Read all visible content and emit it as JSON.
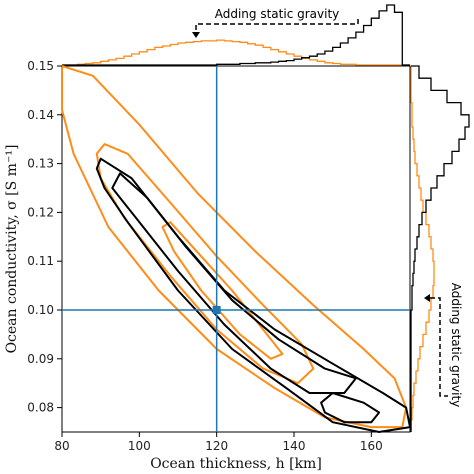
{
  "chart_data": {
    "type": "contour",
    "title": "",
    "xlabel": "Ocean thickness, h [km]",
    "ylabel": "Ocean conductivity, σ [S m⁻¹]",
    "xlim": [
      80,
      170
    ],
    "ylim": [
      0.075,
      0.15
    ],
    "xticks": [
      80,
      100,
      120,
      140,
      160
    ],
    "yticks": [
      0.08,
      0.09,
      0.1,
      0.11,
      0.12,
      0.13,
      0.14,
      0.15
    ],
    "true_value": {
      "h": 120,
      "sigma": 0.1
    },
    "colors": {
      "without_gravity": "#ff8c1a",
      "with_gravity": "#000000",
      "truth": "#1f77b4"
    },
    "annotations": {
      "top": "Adding static gravity",
      "right": "Adding static gravity"
    },
    "series": [
      {
        "color_key": "without_gravity",
        "contours": [
          [
            [
              80,
              0.15
            ],
            [
              88,
              0.148
            ],
            [
              100,
              0.138
            ],
            [
              115,
              0.124
            ],
            [
              130,
              0.112
            ],
            [
              145,
              0.101
            ],
            [
              158,
              0.092
            ],
            [
              166,
              0.086
            ],
            [
              169,
              0.08
            ],
            [
              168,
              0.076
            ],
            [
              160,
              0.076
            ],
            [
              148,
              0.078
            ],
            [
              135,
              0.084
            ],
            [
              120,
              0.092
            ],
            [
              105,
              0.104
            ],
            [
              92,
              0.117
            ],
            [
              83,
              0.132
            ],
            [
              80,
              0.141
            ]
          ],
          [
            [
              91,
              0.134
            ],
            [
              97,
              0.132
            ],
            [
              108,
              0.122
            ],
            [
              120,
              0.111
            ],
            [
              132,
              0.101
            ],
            [
              142,
              0.093
            ],
            [
              145,
              0.088
            ],
            [
              141,
              0.085
            ],
            [
              132,
              0.088
            ],
            [
              120,
              0.096
            ],
            [
              108,
              0.107
            ],
            [
              96,
              0.119
            ],
            [
              90,
              0.127
            ],
            [
              89,
              0.132
            ]
          ],
          [
            [
              108,
              0.118
            ],
            [
              116,
              0.111
            ],
            [
              124,
              0.104
            ],
            [
              132,
              0.096
            ],
            [
              137,
              0.091
            ],
            [
              134,
              0.09
            ],
            [
              126,
              0.095
            ],
            [
              116,
              0.104
            ],
            [
              109,
              0.112
            ],
            [
              106,
              0.117
            ]
          ]
        ]
      },
      {
        "color_key": "with_gravity",
        "contours": [
          [
            [
              90,
              0.131
            ],
            [
              98,
              0.127
            ],
            [
              110,
              0.115
            ],
            [
              122,
              0.104
            ],
            [
              135,
              0.096
            ],
            [
              150,
              0.089
            ],
            [
              163,
              0.083
            ],
            [
              169,
              0.08
            ],
            [
              170,
              0.076
            ],
            [
              162,
              0.075
            ],
            [
              150,
              0.077
            ],
            [
              138,
              0.084
            ],
            [
              124,
              0.092
            ],
            [
              110,
              0.104
            ],
            [
              97,
              0.118
            ],
            [
              91,
              0.125
            ],
            [
              89,
              0.129
            ]
          ],
          [
            [
              95,
              0.128
            ],
            [
              102,
              0.123
            ],
            [
              112,
              0.113
            ],
            [
              124,
              0.102
            ],
            [
              136,
              0.094
            ],
            [
              148,
              0.088
            ],
            [
              156,
              0.086
            ],
            [
              153,
              0.083
            ],
            [
              144,
              0.083
            ],
            [
              134,
              0.088
            ],
            [
              122,
              0.097
            ],
            [
              110,
              0.108
            ],
            [
              99,
              0.119
            ],
            [
              93,
              0.125
            ]
          ],
          [
            [
              150,
              0.083
            ],
            [
              158,
              0.081
            ],
            [
              162,
              0.079
            ],
            [
              160,
              0.077
            ],
            [
              153,
              0.077
            ],
            [
              148,
              0.079
            ],
            [
              147,
              0.081
            ]
          ]
        ]
      }
    ],
    "marginal_top": {
      "orange": [
        0,
        0,
        1,
        2,
        3,
        5,
        7,
        9,
        12,
        15,
        18,
        21,
        24,
        26,
        28,
        30,
        31,
        32,
        33,
        33,
        34,
        33,
        32,
        31,
        29,
        27,
        24,
        21,
        18,
        15,
        12,
        9,
        7,
        5,
        3,
        2,
        1,
        1,
        0,
        0,
        0,
        0,
        0,
        0,
        0
      ],
      "black": [
        0,
        0,
        0,
        0,
        0,
        0,
        0,
        0,
        0,
        0,
        0,
        0,
        0,
        0,
        0,
        0,
        0,
        0,
        0,
        0,
        1,
        1,
        1,
        2,
        2,
        3,
        3,
        4,
        5,
        6,
        8,
        10,
        12,
        15,
        19,
        24,
        30,
        37,
        45,
        54,
        64,
        74,
        82,
        72,
        0
      ]
    },
    "marginal_right": {
      "orange": [
        0,
        1,
        2,
        3,
        5,
        7,
        9,
        12,
        15,
        18,
        20,
        22,
        23,
        23,
        22,
        20,
        18,
        15,
        12,
        10,
        8,
        6,
        4,
        3,
        2,
        1,
        1,
        0,
        0,
        0
      ],
      "black": [
        0,
        0,
        0,
        0,
        0,
        0,
        0,
        0,
        0,
        0,
        1,
        1,
        2,
        3,
        4,
        6,
        8,
        11,
        15,
        20,
        26,
        33,
        41,
        48,
        54,
        58,
        50,
        36,
        20,
        8
      ]
    }
  }
}
